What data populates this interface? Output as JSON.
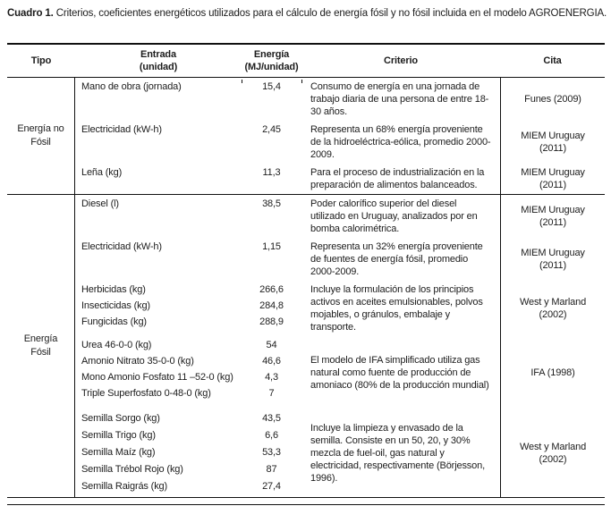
{
  "title": {
    "label": "Cuadro 1.",
    "text": "Criterios, coeficientes energéticos utilizados para el cálculo de energía fósil y no fósil incluida en el modelo AGROENERGIA."
  },
  "table": {
    "headers": {
      "tipo": "Tipo",
      "entrada_line1": "Entrada",
      "entrada_line2": "(unidad)",
      "energia_line1": "Energía",
      "energia_line2": "(MJ/unidad)",
      "criterio": "Criterio",
      "cita": "Cita"
    },
    "sections": [
      {
        "tipo": "Energía no Fósil",
        "groups": [
          {
            "entries": [
              {
                "entrada": "Mano de obra  (jornada)",
                "energia": "15,4"
              }
            ],
            "criterio": "Consumo de energía en una jornada de trabajo diaria de una persona de entre 18-30 años.",
            "cita": "Funes (2009)"
          },
          {
            "entries": [
              {
                "entrada": "Electricidad (kW-h)",
                "energia": "2,45"
              }
            ],
            "criterio": "Representa un 68% energía proveniente de la hidroeléctrica-eólica, promedio 2000-2009.",
            "cita": "MIEM Uruguay (2011)"
          },
          {
            "entries": [
              {
                "entrada": "Leña  (kg)",
                "energia": "11,3"
              }
            ],
            "criterio": "Para el proceso de industrialización en la preparación de alimentos balanceados.",
            "cita": "MIEM Uruguay (2011)"
          }
        ]
      },
      {
        "tipo": "Energía Fósil",
        "groups": [
          {
            "entries": [
              {
                "entrada": "Diesel  (l)",
                "energia": "38,5"
              }
            ],
            "criterio": "Poder calorífico superior del diesel utilizado en Uruguay, analizados por en bomba calorimétrica.",
            "cita": "MIEM Uruguay (2011)"
          },
          {
            "entries": [
              {
                "entrada": "Electricidad (kW-h)",
                "energia": "1,15"
              }
            ],
            "criterio": "Representa un  32% energía proveniente de fuentes de energía fósil, promedio 2000-2009.",
            "cita": "MIEM Uruguay (2011)"
          },
          {
            "entries": [
              {
                "entrada": "Herbicidas (kg)",
                "energia": "266,6"
              },
              {
                "entrada": "Insecticidas (kg)",
                "energia": "284,8"
              },
              {
                "entrada": "Fungicidas (kg)",
                "energia": "288,9"
              }
            ],
            "criterio": "Incluye la formulación de los principios activos en aceites emulsionables, polvos mojables, o gránulos, embalaje y transporte.",
            "cita": "West y Marland (2002)"
          },
          {
            "entries": [
              {
                "entrada": "Urea 46-0-0 (kg)",
                "energia": "54"
              },
              {
                "entrada": "Amonio Nitrato 35-0-0 (kg)",
                "energia": "46,6"
              },
              {
                "entrada": "Mono Amonio Fosfato  11 –52-0 (kg)",
                "energia": "4,3"
              },
              {
                "entrada": "Triple Superfosfato 0-48-0 (kg)",
                "energia": "7"
              }
            ],
            "criterio": "El modelo de IFA simplificado utiliza gas natural como fuente de producción de amoniaco (80% de la producción mundial)",
            "cita": "IFA (1998)"
          },
          {
            "entries": [
              {
                "entrada": "Semilla Sorgo (kg)",
                "energia": "43,5"
              },
              {
                "entrada": "Semilla Trigo (kg)",
                "energia": "6,6"
              },
              {
                "entrada": "Semilla Maíz (kg)",
                "energia": "53,3"
              },
              {
                "entrada": "Semilla Trébol Rojo (kg)",
                "energia": "87"
              },
              {
                "entrada": "Semilla Raigrás (kg)",
                "energia": "27,4"
              }
            ],
            "criterio": "Incluye la limpieza y envasado de la semilla. Consiste en un 50, 20, y 30% mezcla de fuel-oil, gas natural y electricidad, respectivamente (Börjesson, 1996).",
            "cita": "West y Marland (2002)"
          }
        ]
      }
    ]
  }
}
